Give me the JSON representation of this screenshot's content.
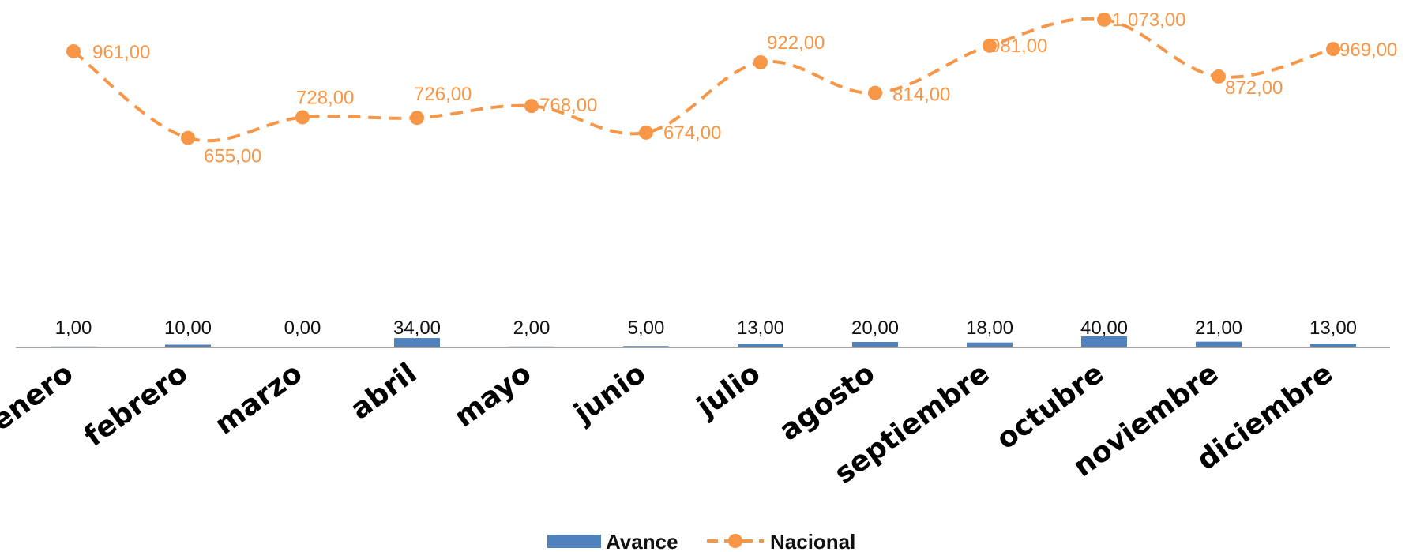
{
  "chart_data": {
    "type": "line",
    "categories": [
      "enero",
      "febrero",
      "marzo",
      "abril",
      "mayo",
      "junio",
      "julio",
      "agosto",
      "septiembre",
      "octubre",
      "noviembre",
      "diciembre"
    ],
    "series": [
      {
        "name": "Avance",
        "type": "bar",
        "color": "#4f81bd",
        "values": [
          1,
          10,
          0,
          34,
          2,
          5,
          13,
          20,
          18,
          40,
          21,
          13
        ],
        "labels": [
          "1,00",
          "10,00",
          "0,00",
          "34,00",
          "2,00",
          "5,00",
          "13,00",
          "20,00",
          "18,00",
          "40,00",
          "21,00",
          "13,00"
        ]
      },
      {
        "name": "Nacional",
        "type": "line",
        "style": "dashed-smooth",
        "marker": "circle",
        "color": "#f79646",
        "values": [
          961,
          655,
          728,
          726,
          768,
          674,
          922,
          814,
          981,
          1073,
          872,
          969
        ],
        "labels": [
          "961,00",
          "655,00",
          "728,00",
          "726,00",
          "768,00",
          "674,00",
          "922,00",
          "814,00",
          "981,00",
          "1.073,00",
          "872,00",
          "969,00"
        ]
      }
    ],
    "legend": {
      "position": "bottom"
    },
    "grid": false,
    "title": "",
    "xlabel": "",
    "ylabel": ""
  }
}
